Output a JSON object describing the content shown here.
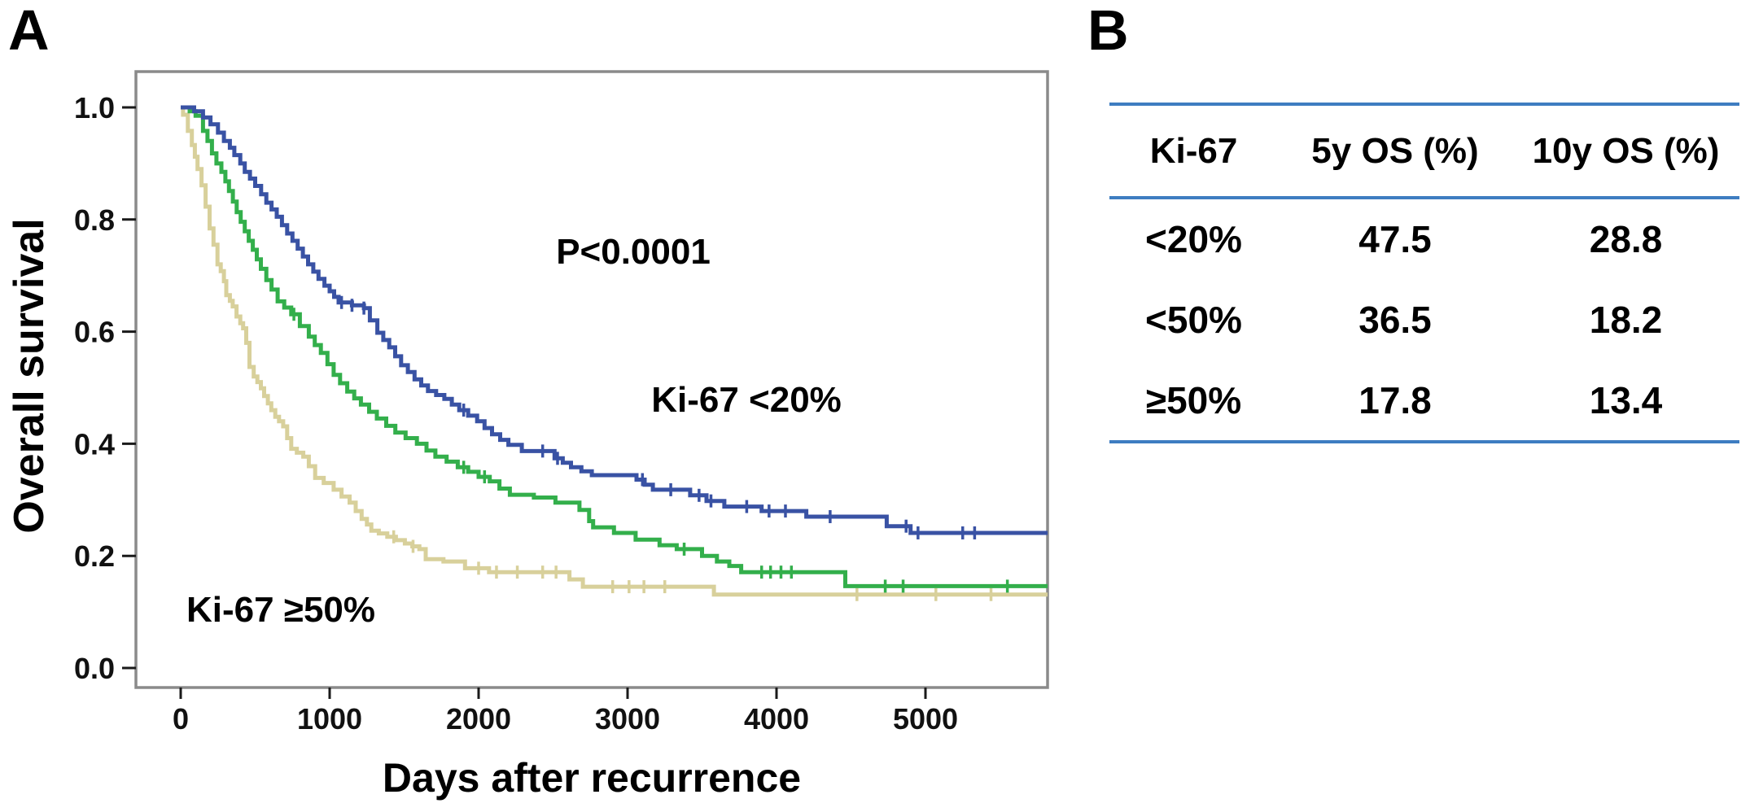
{
  "panels": {
    "a_label": "A",
    "b_label": "B"
  },
  "chart_data": {
    "type": "line",
    "subtype": "kaplan-meier-step-curves",
    "title": "",
    "xlabel": "Days after recurrence",
    "ylabel": "Overall survival",
    "grid": false,
    "legend_position": "none (curve labels annotated on plot)",
    "frame_color": "#8a8a8a",
    "tick_color": "#1a1a1a",
    "xlim": [
      -300,
      5820
    ],
    "ylim": [
      -0.035,
      1.06
    ],
    "x_ticks": {
      "values": [
        0,
        1000,
        2000,
        3000,
        4000,
        5000
      ],
      "labels": [
        "0",
        "1000",
        "2000",
        "3000",
        "4000",
        "5000"
      ]
    },
    "y_ticks": {
      "values": [
        1.0,
        0.8,
        0.6,
        0.4,
        0.2,
        0.0
      ],
      "labels": [
        "1.0",
        "0.8",
        "0.6",
        "0.4",
        "0.2",
        "0.0"
      ]
    },
    "annotations": [
      {
        "text": "P<0.0001"
      },
      {
        "text": "Ki-67 <20%"
      },
      {
        "text": "Ki-67 ≥50%"
      }
    ],
    "series": [
      {
        "name": "Ki-67 ≥50%",
        "color": "#d8d09b",
        "points": [
          [
            0,
            1.0
          ],
          [
            16,
            0.987
          ],
          [
            48,
            0.958
          ],
          [
            75,
            0.933
          ],
          [
            95,
            0.912
          ],
          [
            113,
            0.89
          ],
          [
            140,
            0.861
          ],
          [
            167,
            0.823
          ],
          [
            194,
            0.784
          ],
          [
            220,
            0.755
          ],
          [
            247,
            0.72
          ],
          [
            269,
            0.708
          ],
          [
            290,
            0.69
          ],
          [
            306,
            0.665
          ],
          [
            330,
            0.655
          ],
          [
            349,
            0.645
          ],
          [
            375,
            0.627
          ],
          [
            400,
            0.615
          ],
          [
            419,
            0.606
          ],
          [
            440,
            0.58
          ],
          [
            462,
            0.537
          ],
          [
            490,
            0.52
          ],
          [
            515,
            0.51
          ],
          [
            538,
            0.499
          ],
          [
            560,
            0.485
          ],
          [
            585,
            0.472
          ],
          [
            608,
            0.46
          ],
          [
            635,
            0.448
          ],
          [
            660,
            0.44
          ],
          [
            688,
            0.431
          ],
          [
            715,
            0.41
          ],
          [
            742,
            0.391
          ],
          [
            780,
            0.384
          ],
          [
            823,
            0.377
          ],
          [
            860,
            0.36
          ],
          [
            903,
            0.339
          ],
          [
            960,
            0.33
          ],
          [
            1027,
            0.318
          ],
          [
            1080,
            0.306
          ],
          [
            1134,
            0.295
          ],
          [
            1175,
            0.28
          ],
          [
            1215,
            0.266
          ],
          [
            1250,
            0.256
          ],
          [
            1280,
            0.245
          ],
          [
            1330,
            0.24
          ],
          [
            1387,
            0.234
          ],
          [
            1445,
            0.228
          ],
          [
            1505,
            0.222
          ],
          [
            1555,
            0.217
          ],
          [
            1602,
            0.212
          ],
          [
            1645,
            0.194
          ],
          [
            1764,
            0.19
          ],
          [
            1909,
            0.178
          ],
          [
            2070,
            0.171
          ],
          [
            2610,
            0.158
          ],
          [
            2700,
            0.145
          ],
          [
            3580,
            0.131
          ],
          [
            5820,
            0.131
          ]
        ],
        "censor_days": [
          1430,
          1560,
          2000,
          2120,
          2260,
          2430,
          2520,
          2900,
          3010,
          3110,
          3250,
          4540,
          5070,
          5440
        ],
        "os_5y_pct": 17.8,
        "os_10y_pct": 13.4
      },
      {
        "name": "Ki-67 <50%",
        "color": "#33af4b",
        "points": [
          [
            0,
            1.0
          ],
          [
            60,
            0.993
          ],
          [
            100,
            0.985
          ],
          [
            150,
            0.958
          ],
          [
            180,
            0.94
          ],
          [
            210,
            0.918
          ],
          [
            240,
            0.9
          ],
          [
            273,
            0.885
          ],
          [
            300,
            0.868
          ],
          [
            324,
            0.851
          ],
          [
            350,
            0.832
          ],
          [
            376,
            0.813
          ],
          [
            403,
            0.796
          ],
          [
            430,
            0.779
          ],
          [
            457,
            0.762
          ],
          [
            484,
            0.746
          ],
          [
            511,
            0.729
          ],
          [
            538,
            0.712
          ],
          [
            575,
            0.692
          ],
          [
            610,
            0.675
          ],
          [
            651,
            0.654
          ],
          [
            695,
            0.643
          ],
          [
            742,
            0.631
          ],
          [
            800,
            0.61
          ],
          [
            860,
            0.591
          ],
          [
            900,
            0.576
          ],
          [
            941,
            0.562
          ],
          [
            985,
            0.542
          ],
          [
            1027,
            0.523
          ],
          [
            1070,
            0.508
          ],
          [
            1118,
            0.493
          ],
          [
            1165,
            0.481
          ],
          [
            1210,
            0.47
          ],
          [
            1265,
            0.457
          ],
          [
            1317,
            0.445
          ],
          [
            1380,
            0.432
          ],
          [
            1441,
            0.42
          ],
          [
            1510,
            0.41
          ],
          [
            1586,
            0.4
          ],
          [
            1650,
            0.388
          ],
          [
            1710,
            0.377
          ],
          [
            1785,
            0.368
          ],
          [
            1860,
            0.358
          ],
          [
            1930,
            0.35
          ],
          [
            2000,
            0.341
          ],
          [
            2075,
            0.333
          ],
          [
            2140,
            0.32
          ],
          [
            2210,
            0.309
          ],
          [
            2371,
            0.304
          ],
          [
            2516,
            0.295
          ],
          [
            2677,
            0.282
          ],
          [
            2742,
            0.262
          ],
          [
            2769,
            0.251
          ],
          [
            2909,
            0.241
          ],
          [
            3054,
            0.229
          ],
          [
            3215,
            0.219
          ],
          [
            3330,
            0.212
          ],
          [
            3500,
            0.2
          ],
          [
            3600,
            0.19
          ],
          [
            3683,
            0.182
          ],
          [
            3763,
            0.171
          ],
          [
            4462,
            0.146
          ],
          [
            5820,
            0.146
          ]
        ],
        "censor_days": [
          760,
          1900,
          2040,
          3380,
          3900,
          3960,
          4030,
          4100,
          4730,
          4850,
          5550
        ],
        "os_5y_pct": 36.5,
        "os_10y_pct": 18.2
      },
      {
        "name": "Ki-67 <20%",
        "color": "#3952a4",
        "points": [
          [
            0,
            1.0
          ],
          [
            90,
            0.993
          ],
          [
            150,
            0.982
          ],
          [
            200,
            0.97
          ],
          [
            250,
            0.955
          ],
          [
            290,
            0.94
          ],
          [
            330,
            0.928
          ],
          [
            360,
            0.915
          ],
          [
            400,
            0.9
          ],
          [
            430,
            0.885
          ],
          [
            465,
            0.873
          ],
          [
            500,
            0.86
          ],
          [
            540,
            0.845
          ],
          [
            575,
            0.83
          ],
          [
            610,
            0.818
          ],
          [
            645,
            0.805
          ],
          [
            680,
            0.79
          ],
          [
            715,
            0.775
          ],
          [
            750,
            0.762
          ],
          [
            785,
            0.748
          ],
          [
            820,
            0.734
          ],
          [
            855,
            0.72
          ],
          [
            890,
            0.707
          ],
          [
            925,
            0.694
          ],
          [
            965,
            0.682
          ],
          [
            1000,
            0.672
          ],
          [
            1030,
            0.662
          ],
          [
            1060,
            0.652
          ],
          [
            1150,
            0.647
          ],
          [
            1230,
            0.642
          ],
          [
            1270,
            0.62
          ],
          [
            1320,
            0.598
          ],
          [
            1360,
            0.585
          ],
          [
            1400,
            0.572
          ],
          [
            1440,
            0.556
          ],
          [
            1480,
            0.54
          ],
          [
            1525,
            0.528
          ],
          [
            1570,
            0.515
          ],
          [
            1615,
            0.504
          ],
          [
            1660,
            0.494
          ],
          [
            1715,
            0.487
          ],
          [
            1770,
            0.48
          ],
          [
            1820,
            0.47
          ],
          [
            1870,
            0.46
          ],
          [
            1930,
            0.45
          ],
          [
            1990,
            0.44
          ],
          [
            2040,
            0.428
          ],
          [
            2090,
            0.417
          ],
          [
            2145,
            0.407
          ],
          [
            2200,
            0.398
          ],
          [
            2290,
            0.387
          ],
          [
            2510,
            0.374
          ],
          [
            2565,
            0.366
          ],
          [
            2620,
            0.358
          ],
          [
            2690,
            0.351
          ],
          [
            2760,
            0.344
          ],
          [
            3060,
            0.336
          ],
          [
            3115,
            0.327
          ],
          [
            3170,
            0.318
          ],
          [
            3420,
            0.308
          ],
          [
            3530,
            0.298
          ],
          [
            3650,
            0.288
          ],
          [
            3900,
            0.28
          ],
          [
            4200,
            0.27
          ],
          [
            4740,
            0.253
          ],
          [
            4900,
            0.241
          ],
          [
            5820,
            0.241
          ]
        ],
        "censor_days": [
          1080,
          1150,
          1230,
          1900,
          2430,
          2530,
          3100,
          3290,
          3480,
          3560,
          3800,
          3950,
          4060,
          4360,
          4870,
          4950,
          5250,
          5330
        ],
        "os_5y_pct": 47.5,
        "os_10y_pct": 28.8
      }
    ],
    "p_value": "P<0.0001"
  },
  "table": {
    "rule_color": "#3e7dc1",
    "columns": [
      "Ki-67",
      "5y OS (%)",
      "10y OS (%)"
    ],
    "rows": [
      {
        "ki67": "<20%",
        "os5": "47.5",
        "os10": "28.8"
      },
      {
        "ki67": "<50%",
        "os5": "36.5",
        "os10": "18.2"
      },
      {
        "ki67": "≥50%",
        "os5": "17.8",
        "os10": "13.4"
      }
    ]
  }
}
